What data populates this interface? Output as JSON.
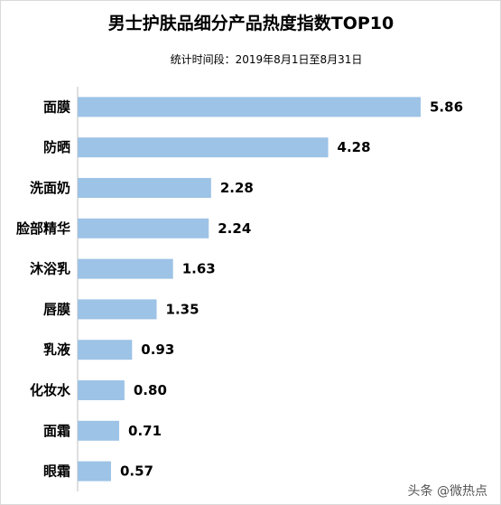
{
  "chart_data": {
    "type": "bar",
    "orientation": "horizontal",
    "title": "男士护肤品细分产品热度指数TOP10",
    "subtitle": "统计时间段：2019年8月1日至8月31日",
    "categories": [
      "面膜",
      "防晒",
      "洗面奶",
      "脸部精华",
      "沐浴乳",
      "唇膜",
      "乳液",
      "化妆水",
      "面霜",
      "眼霜"
    ],
    "values": [
      5.86,
      4.28,
      2.28,
      2.24,
      1.63,
      1.35,
      0.93,
      0.8,
      0.71,
      0.57
    ],
    "value_labels": [
      "5.86",
      "4.28",
      "2.28",
      "2.24",
      "1.63",
      "1.35",
      "0.93",
      "0.80",
      "0.71",
      "0.57"
    ],
    "xlim": [
      0,
      5.86
    ],
    "grid": false,
    "legend": "none",
    "bar_color": "#9dc3e6",
    "axis_color": "#bfbfbf"
  },
  "watermark": "头条 @微热点"
}
